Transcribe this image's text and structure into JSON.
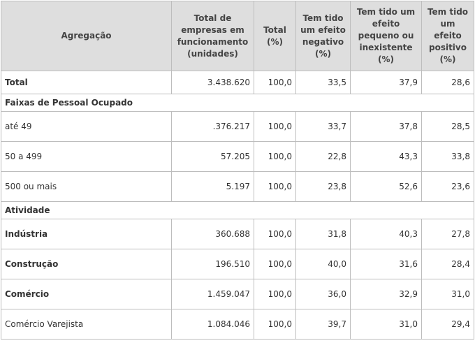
{
  "table": {
    "header": [
      "Agregação",
      "Total de empresas em funcionamento (unidades)",
      "Total (%)",
      "Tem tido um efeito negativo (%)",
      "Tem tido um efeito pequeno ou inexistente (%)",
      "Tem tido um efeito positivo (%)"
    ],
    "rows": [
      [
        "Total",
        "3.438.620",
        "100,0",
        "33,5",
        "37,9",
        "28,6"
      ],
      [
        "Faixas de Pessoal Ocupado"
      ],
      [
        "até 49",
        ".376.217",
        "100,0",
        "33,7",
        "37,8",
        "28,5"
      ],
      [
        "50 a 499",
        "57.205",
        "100,0",
        "22,8",
        "43,3",
        "33,8"
      ],
      [
        "500 ou mais",
        "5.197",
        "100,0",
        "23,8",
        "52,6",
        "23,6"
      ],
      [
        "Atividade"
      ],
      [
        "Indústria",
        "360.688",
        "100,0",
        "31,8",
        "40,3",
        "27,8"
      ],
      [
        "Construção",
        "196.510",
        "100,0",
        "40,0",
        "31,6",
        "28,4"
      ],
      [
        "Comércio",
        "1.459.047",
        "100,0",
        "36,0",
        "32,9",
        "31,0"
      ],
      [
        "Comércio Varejista",
        "1.084.046",
        "100,0",
        "39,7",
        "31,0",
        "29,4"
      ]
    ]
  }
}
